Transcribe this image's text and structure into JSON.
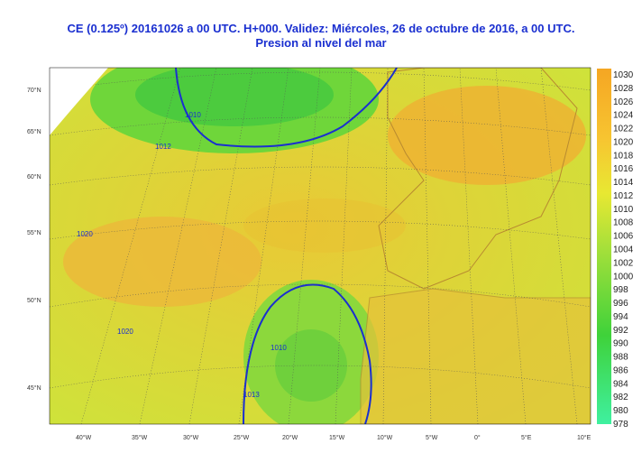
{
  "header": {
    "title_line1": "CE (0.125º) 20161026 a 00 UTC.  H+000. Validez: Miércoles, 26 de octubre de 2016,  a  00 UTC.",
    "title_line2": "Presion al nivel del mar"
  },
  "colorbar": {
    "labels": [
      "1030",
      "1028",
      "1026",
      "1024",
      "1022",
      "1020",
      "1018",
      "1016",
      "1014",
      "1012",
      "1010",
      "1008",
      "1006",
      "1004",
      "1002",
      "1000",
      "998",
      "996",
      "994",
      "992",
      "990",
      "988",
      "986",
      "984",
      "982",
      "980",
      "978"
    ]
  },
  "latitude_labels": [
    "70°N",
    "65°N",
    "60°N",
    "55°N",
    "50°N",
    "45°N"
  ],
  "longitude_labels": [
    "40°W",
    "35°W",
    "30°W",
    "25°W",
    "20°W",
    "15°W",
    "10°W",
    "5°W",
    "0°",
    "5°E",
    "10°E"
  ],
  "contour_labels": [
    "1010",
    "1012",
    "1010",
    "1013",
    "1020",
    "1020"
  ]
}
